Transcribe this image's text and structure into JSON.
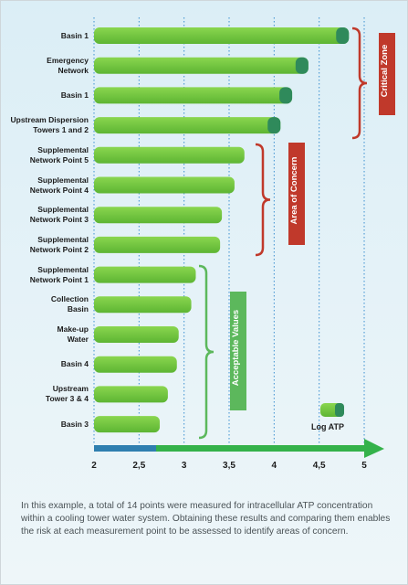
{
  "chart_data": {
    "type": "bar",
    "orientation": "horizontal",
    "categories": [
      "Basin  1",
      "Emergency Network",
      "Basin 1",
      "Upstream Dispersion Towers 1 and 2",
      "Supplemental Network Point 5",
      "Supplemental Network Point 4",
      "Supplemental Network Point 3",
      "Supplemental Network Point 2",
      "Supplemental Network Point 1",
      "Collection Basin",
      "Make-up Water",
      "Basin 4",
      "Upstream Tower 3 & 4",
      "Basin 3"
    ],
    "values": [
      4.83,
      4.38,
      4.2,
      4.07,
      3.67,
      3.56,
      3.42,
      3.4,
      3.13,
      3.08,
      2.94,
      2.92,
      2.82,
      2.73
    ],
    "xlim": [
      2,
      5
    ],
    "xticks": [
      "2",
      "2,5",
      "3",
      "3,5",
      "4",
      "4,5",
      "5"
    ],
    "xtick_values": [
      2,
      2.5,
      3,
      3.5,
      4,
      4.5,
      5
    ],
    "grid": "vertical dotted",
    "legend": {
      "label": "Log ATP",
      "position": "bottom-right"
    },
    "annotations": [
      {
        "label": "Critical Zone",
        "color": "#c0392b",
        "from_index": 0,
        "to_index": 3
      },
      {
        "label": "Area of Concern",
        "color": "#c0392b",
        "from_index": 4,
        "to_index": 7
      },
      {
        "label": "Acceptable Values",
        "color": "#5cb85c",
        "from_index": 8,
        "to_index": 13
      }
    ]
  },
  "colors": {
    "bar": "#6ec43f",
    "bar_tip": "#2f8a5b",
    "axis": "#34b24a",
    "critical": "#c0392b",
    "acceptable": "#5cb85c"
  },
  "caption": "In this example, a total of 14 points were measured for intracellular ATP concentration within a cooling tower water system.  Obtaining these results and comparing them enables the risk at each measurement point to be assessed to identify areas of concern."
}
